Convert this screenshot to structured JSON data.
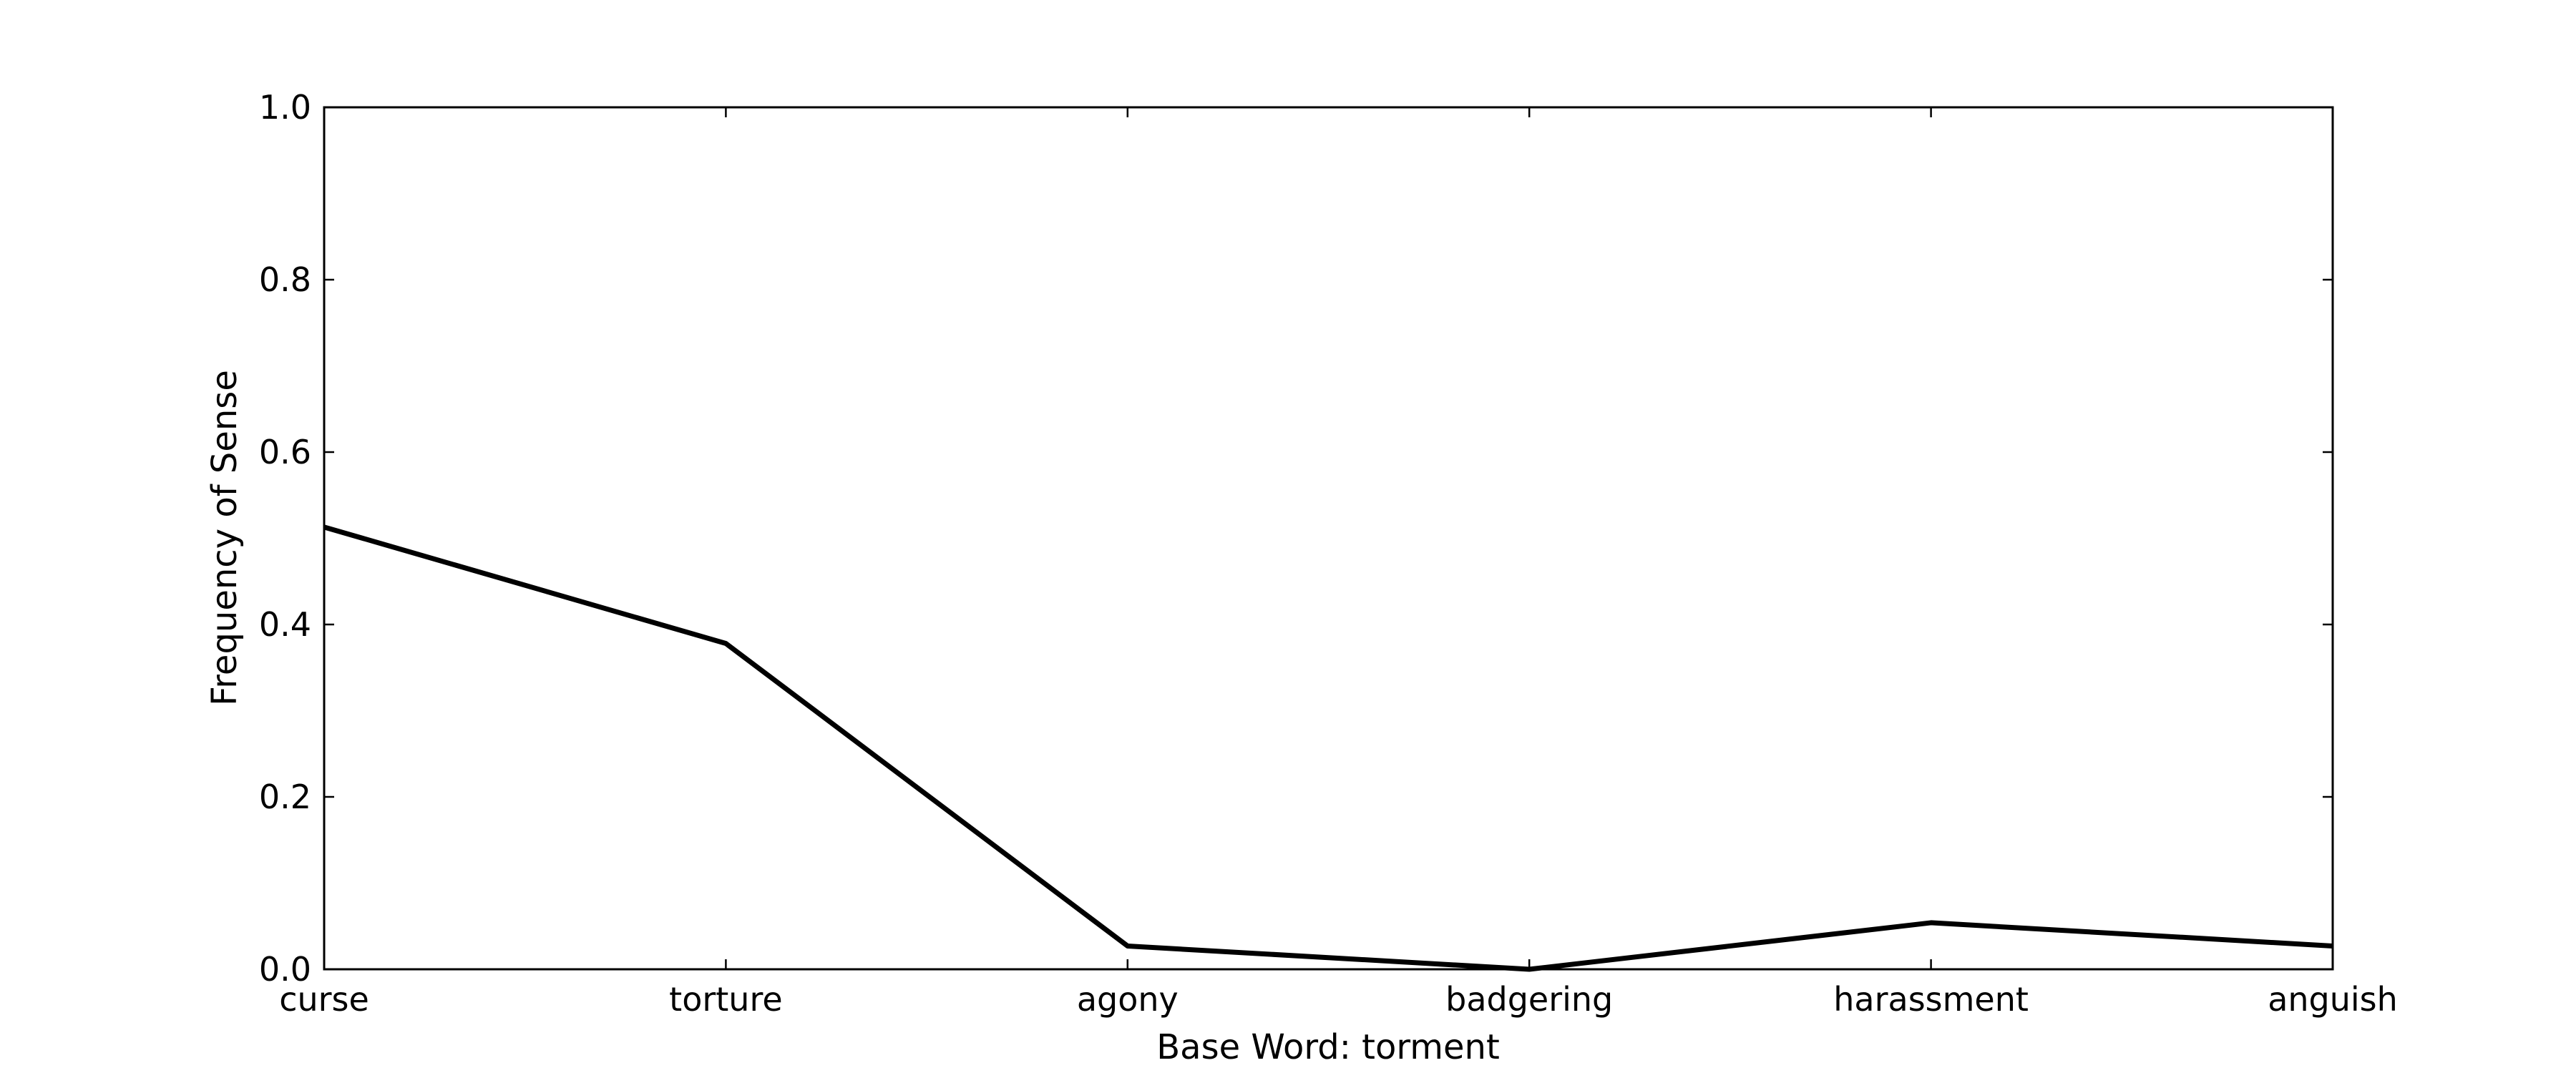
{
  "chart_data": {
    "type": "line",
    "title": "",
    "xlabel": "Base Word: torment",
    "ylabel": "Frequency of Sense",
    "categories": [
      "curse",
      "torture",
      "agony",
      "badgering",
      "harassment",
      "anguish"
    ],
    "series": [
      {
        "values": [
          0.513,
          0.378,
          0.027,
          0.0,
          0.054,
          0.027
        ]
      }
    ],
    "ylim": [
      0.0,
      1.0
    ],
    "yticks": [
      "0.0",
      "0.2",
      "0.4",
      "0.6",
      "0.8",
      "1.0"
    ],
    "grid": false,
    "legend": "none",
    "line_color": "#000000"
  }
}
